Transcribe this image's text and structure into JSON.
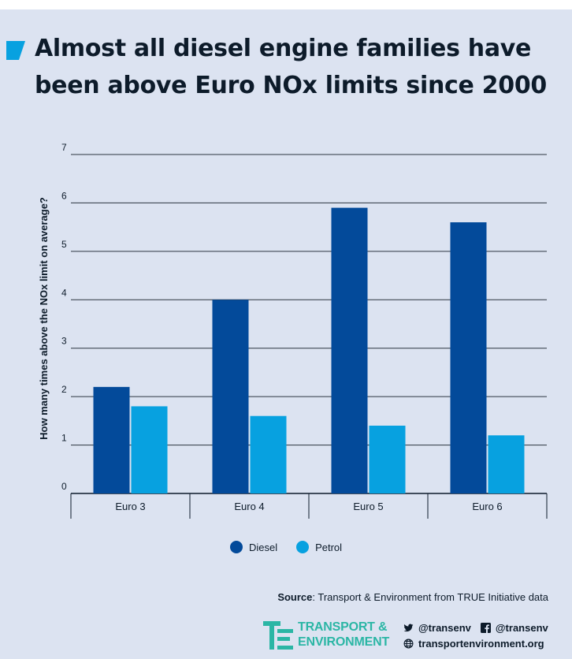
{
  "title": "Almost all diesel engine families have been above Euro NOx limits since 2000",
  "chart_data": {
    "type": "bar",
    "title": "Almost all diesel engine families have been above Euro NOx limits since 2000",
    "xlabel": "",
    "ylabel": "How many times above the NOx limit on average?",
    "categories": [
      "Euro 3",
      "Euro 4",
      "Euro 5",
      "Euro 6"
    ],
    "series": [
      {
        "name": "Diesel",
        "values": [
          2.2,
          4.0,
          5.9,
          5.6
        ],
        "color": "#034a9a"
      },
      {
        "name": "Petrol",
        "values": [
          1.8,
          1.6,
          1.4,
          1.2
        ],
        "color": "#07a1e0"
      }
    ],
    "ylim": [
      0,
      7
    ],
    "yticks": [
      "0",
      "1",
      "2",
      "3",
      "4",
      "5",
      "6",
      "7"
    ],
    "grid": true,
    "legend_position": "bottom"
  },
  "source": {
    "label": "Source",
    "text": ": Transport & Environment from TRUE Initiative data"
  },
  "logo": {
    "line1": "TRANSPORT &",
    "line2": "ENVIRONMENT",
    "color": "#2bb6a5"
  },
  "social": {
    "twitter": "@transenv",
    "facebook": "@transenv",
    "website": "transportenvironment.org"
  },
  "colors": {
    "background": "#dce3f1",
    "accent": "#07a1e0",
    "text": "#0d1b2a"
  },
  "icons": {
    "title_marker": "blue-wedge-icon",
    "twitter": "twitter-icon",
    "facebook": "facebook-icon",
    "website": "globe-icon"
  }
}
